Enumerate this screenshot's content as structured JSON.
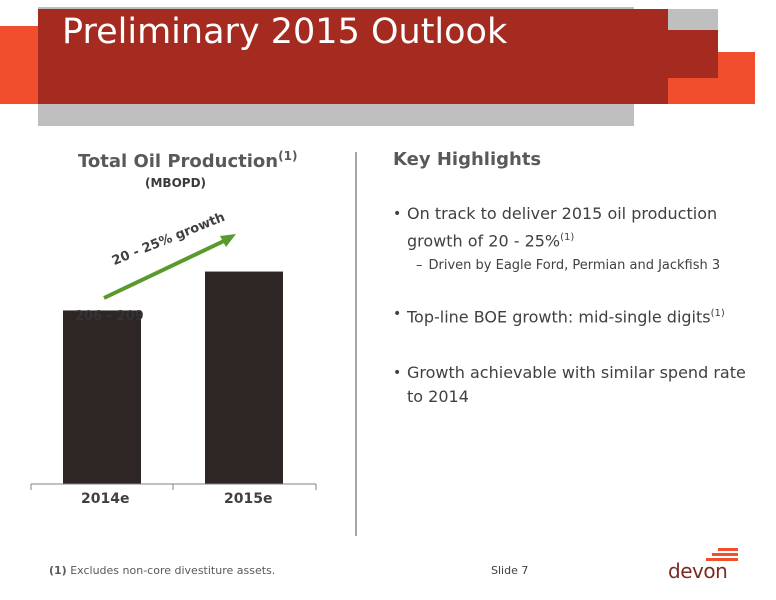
{
  "slide": {
    "title": "Preliminary 2015 Outlook",
    "chart_title": "Total Oil Production",
    "chart_title_note": "(1)",
    "chart_subtitle": "(MBOPD)",
    "growth_label": "20 - 25% growth",
    "highlights_title": "Key Highlights",
    "bullets": [
      {
        "text": "On track to deliver 2015 oil production growth of 20 - 25%",
        "note": "(1)"
      },
      {
        "text": "Top-line BOE growth: mid-single digits",
        "note": "(1)"
      },
      {
        "text": "Growth achievable with similar spend rate to 2014",
        "note": ""
      }
    ],
    "sub_bullet": "Driven by Eagle Ford, Permian and Jackfish 3",
    "sub_bullet_marker": "–",
    "bullet_marker": "•",
    "footnote_marker": "(1)",
    "footnote_text": "Excludes non-core divestiture assets.",
    "slide_number": "Slide 7",
    "logo_text": "devon"
  },
  "colors": {
    "brand_red": "#a52a1f",
    "accent_orange": "#f04e2c",
    "gray": "#bfbfbf",
    "bar": "#2e2525",
    "arrow": "#5a9a2c"
  },
  "chart_data": {
    "type": "bar",
    "title": "Total Oil Production(1)",
    "subtitle": "(MBOPD)",
    "categories": [
      "2014e",
      "2015e"
    ],
    "values": [
      207.5,
      254
    ],
    "data_labels": [
      "206 - 209",
      ""
    ],
    "annotation": "20 - 25% growth",
    "ylim": [
      0,
      330
    ],
    "grid": false
  }
}
